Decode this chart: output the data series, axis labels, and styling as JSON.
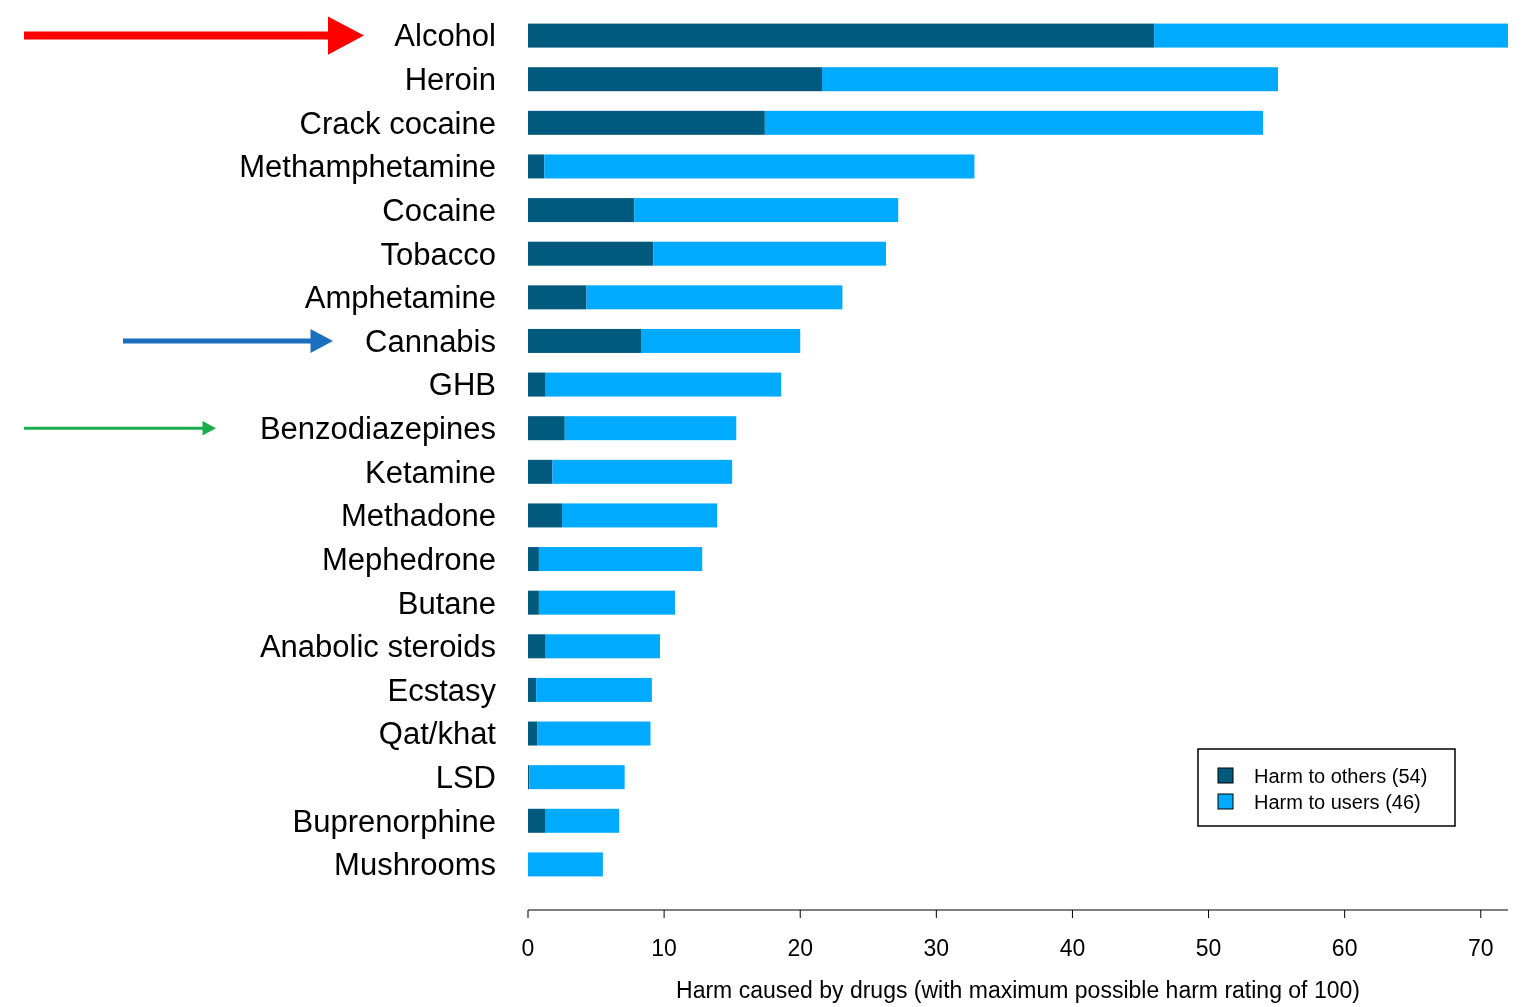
{
  "chart_data": {
    "type": "bar",
    "orientation": "horizontal",
    "stacked": true,
    "xlabel": "Harm caused by drugs (with maximum possible harm rating of 100)",
    "categories": [
      "Alcohol",
      "Heroin",
      "Crack cocaine",
      "Methamphetamine",
      "Cocaine",
      "Tobacco",
      "Amphetamine",
      "Cannabis",
      "GHB",
      "Benzodiazepines",
      "Ketamine",
      "Methadone",
      "Mephedrone",
      "Butane",
      "Anabolic steroids",
      "Ecstasy",
      "Qat/khat",
      "LSD",
      "Buprenorphine",
      "Mushrooms"
    ],
    "series": [
      {
        "name": "Harm to others (54)",
        "color": "#005a7e",
        "values": [
          46,
          21.6,
          17.4,
          1.2,
          7.8,
          9.2,
          4.3,
          8.3,
          1.3,
          2.7,
          1.8,
          2.5,
          0.8,
          0.8,
          1.3,
          0.6,
          0.7,
          0.1,
          1.3,
          0
        ]
      },
      {
        "name": "Harm to users (46)",
        "color": "#00aaff",
        "values": [
          26,
          33.5,
          36.6,
          31.6,
          19.4,
          17.1,
          18.8,
          11.7,
          17.3,
          12.6,
          13.2,
          11.4,
          12,
          10,
          8.4,
          8.5,
          8.3,
          7,
          5.4,
          5.5
        ]
      }
    ],
    "xlim": [
      0,
      72
    ],
    "xticks": [
      0,
      10,
      20,
      30,
      40,
      50,
      60,
      70
    ],
    "legend": "bottom right"
  }
}
